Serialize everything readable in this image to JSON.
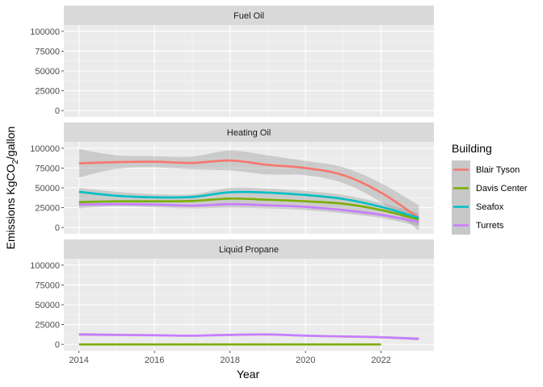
{
  "chart_data": {
    "type": "line",
    "xlabel": "Year",
    "ylabel_main": "Emissions KgCO",
    "ylabel_sub": "2",
    "ylabel_tail": "/gallon",
    "xticks": [
      2014,
      2016,
      2018,
      2020,
      2022
    ],
    "yticks": [
      0,
      25000,
      50000,
      75000,
      100000
    ],
    "ytick_labels": [
      "0",
      "25000",
      "50000",
      "75000",
      "100000"
    ],
    "xlim": [
      2013.6,
      2023.4
    ],
    "ylim": [
      -8000,
      108000
    ],
    "grid": true,
    "legend": {
      "title": "Building",
      "position": "right",
      "entries": [
        {
          "name": "Blair Tyson",
          "color": "#F8766D"
        },
        {
          "name": "Davis Center",
          "color": "#7CAE00"
        },
        {
          "name": "Seafox",
          "color": "#00BFC4"
        },
        {
          "name": "Turrets",
          "color": "#C77CFF"
        }
      ]
    },
    "panels": [
      {
        "title": "Fuel Oil",
        "series": []
      },
      {
        "title": "Heating Oil",
        "series": [
          {
            "name": "Blair Tyson",
            "color": "#F8766D",
            "x": [
              2014,
              2015,
              2016,
              2017,
              2018,
              2019,
              2020,
              2021,
              2022,
              2023
            ],
            "y": [
              81000,
              82500,
              83000,
              81500,
              84500,
              79000,
              75000,
              66000,
              44000,
              12000
            ],
            "band": {
              "upper": [
                99000,
                91000,
                90000,
                89500,
                97000,
                91000,
                84000,
                76000,
                56000,
                28000
              ],
              "lower": [
                63000,
                74000,
                76000,
                73500,
                72000,
                67000,
                66000,
                56000,
                32000,
                -4000
              ]
            }
          },
          {
            "name": "Davis Center",
            "color": "#7CAE00",
            "x": [
              2014,
              2015,
              2016,
              2017,
              2018,
              2019,
              2020,
              2021,
              2022,
              2023
            ],
            "y": [
              32000,
              33000,
              33000,
              33500,
              36500,
              35000,
              33000,
              30000,
              22000,
              10000
            ],
            "band": null
          },
          {
            "name": "Seafox",
            "color": "#00BFC4",
            "x": [
              2014,
              2015,
              2016,
              2017,
              2018,
              2019,
              2020,
              2021,
              2022,
              2023
            ],
            "y": [
              45000,
              40000,
              38000,
              38500,
              44500,
              44000,
              41000,
              36000,
              26000,
              12000
            ],
            "band": null
          },
          {
            "name": "Turrets",
            "color": "#C77CFF",
            "x": [
              2014,
              2015,
              2016,
              2017,
              2018,
              2019,
              2020,
              2021,
              2022,
              2023
            ],
            "y": [
              29000,
              29500,
              29000,
              27500,
              29500,
              28000,
              26000,
              22000,
              16000,
              7000
            ],
            "band": null
          }
        ],
        "shared_band": {
          "x": [
            2014,
            2015,
            2016,
            2017,
            2018,
            2019,
            2020,
            2021,
            2022,
            2023
          ],
          "upper": [
            50000,
            45000,
            42000,
            42000,
            50000,
            49000,
            46000,
            41000,
            31000,
            18000
          ],
          "lower": [
            24000,
            27000,
            25500,
            24000,
            25000,
            24000,
            22000,
            18000,
            12000,
            2000
          ]
        }
      },
      {
        "title": "Liquid Propane",
        "series": [
          {
            "name": "Davis Center",
            "color": "#7CAE00",
            "x": [
              2014,
              2015,
              2016,
              2017,
              2018,
              2019,
              2020,
              2021,
              2022
            ],
            "y": [
              0,
              0,
              0,
              0,
              0,
              0,
              0,
              0,
              0
            ],
            "band": null
          },
          {
            "name": "Turrets",
            "color": "#C77CFF",
            "x": [
              2014,
              2015,
              2016,
              2017,
              2018,
              2019,
              2020,
              2021,
              2022,
              2023
            ],
            "y": [
              12500,
              12000,
              11500,
              11000,
              12000,
              12500,
              11000,
              10000,
              9000,
              7000
            ],
            "band": {
              "upper": [
                14500,
                13500,
                13000,
                12500,
                13500,
                14000,
                12500,
                11500,
                10500,
                9000
              ],
              "lower": [
                10500,
                10500,
                10000,
                9500,
                10500,
                11000,
                9500,
                8500,
                7500,
                5000
              ]
            }
          }
        ]
      }
    ]
  }
}
